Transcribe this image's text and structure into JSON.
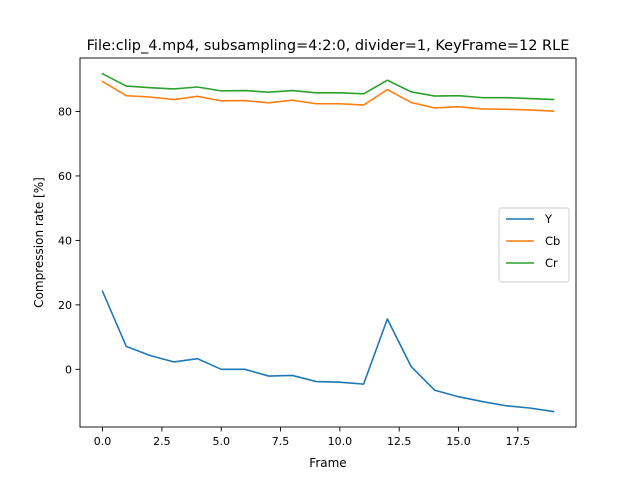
{
  "chart_data": {
    "type": "line",
    "title": "File:clip_4.mp4, subsampling=4:2:0, divider=1, KeyFrame=12 RLE",
    "xlabel": "Frame",
    "ylabel": "Compression rate [%]",
    "xlim": [
      -0.95,
      19.95
    ],
    "ylim": [
      -17.9,
      96.6
    ],
    "x_ticks": [
      0.0,
      2.5,
      5.0,
      7.5,
      10.0,
      12.5,
      15.0,
      17.5
    ],
    "x_tick_labels": [
      "0.0",
      "2.5",
      "5.0",
      "7.5",
      "10.0",
      "12.5",
      "15.0",
      "17.5"
    ],
    "y_ticks": [
      0,
      20,
      40,
      60,
      80
    ],
    "y_tick_labels": [
      "0",
      "20",
      "40",
      "60",
      "80"
    ],
    "grid": false,
    "legend_position": "right",
    "x": [
      0,
      1,
      2,
      3,
      4,
      5,
      6,
      7,
      8,
      9,
      10,
      11,
      12,
      13,
      14,
      15,
      16,
      17,
      18,
      19
    ],
    "series": [
      {
        "name": "Y",
        "color": "#1f77b4",
        "values": [
          24.2,
          7.1,
          4.3,
          2.3,
          3.3,
          0.0,
          0.0,
          -2.1,
          -1.9,
          -3.8,
          -4.0,
          -4.6,
          15.6,
          0.9,
          -6.5,
          -8.5,
          -10.0,
          -11.3,
          -12.0,
          -13.1
        ]
      },
      {
        "name": "Cb",
        "color": "#ff7f0e",
        "values": [
          89.3,
          84.9,
          84.5,
          83.7,
          84.7,
          83.3,
          83.4,
          82.7,
          83.5,
          82.4,
          82.4,
          82.0,
          86.8,
          82.8,
          81.1,
          81.5,
          80.8,
          80.7,
          80.5,
          80.1
        ]
      },
      {
        "name": "Cr",
        "color": "#2ca02c",
        "values": [
          91.7,
          87.9,
          87.4,
          87.0,
          87.6,
          86.4,
          86.5,
          86.0,
          86.5,
          85.8,
          85.8,
          85.5,
          89.7,
          86.1,
          84.8,
          84.9,
          84.3,
          84.3,
          84.0,
          83.7
        ]
      }
    ]
  }
}
